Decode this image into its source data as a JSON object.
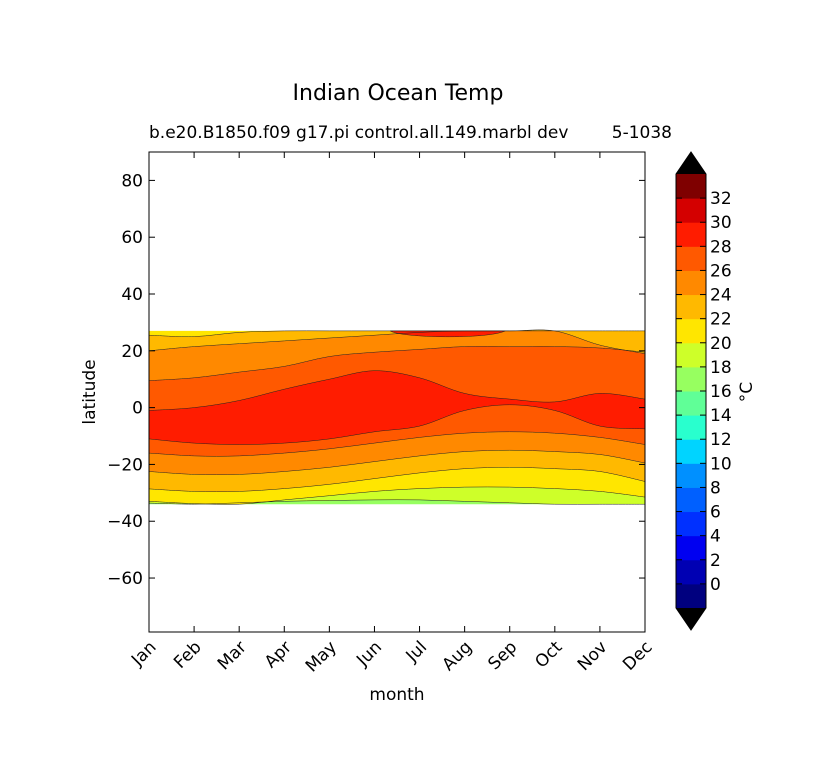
{
  "chart_data": {
    "type": "heatmap",
    "title": "Indian Ocean Temp",
    "subtitle": "b.e20.B1850.f09 g17.pi control.all.149.marbl dev",
    "subtitle_right": "5-1038",
    "xlabel": "month",
    "ylabel": "latitude",
    "x_categories": [
      "Jan",
      "Feb",
      "Mar",
      "Apr",
      "May",
      "Jun",
      "Jul",
      "Aug",
      "Sep",
      "Oct",
      "Nov",
      "Dec"
    ],
    "y_ticks": [
      80,
      60,
      40,
      20,
      0,
      -20,
      -40,
      -60
    ],
    "ylim": [
      -79,
      90
    ],
    "data_lat_range": [
      -34,
      27
    ],
    "colorbar": {
      "label": "°C",
      "ticks": [
        0,
        2,
        4,
        6,
        8,
        10,
        12,
        14,
        16,
        18,
        20,
        22,
        24,
        26,
        28,
        30,
        32
      ],
      "bins": [
        {
          "lo": -2,
          "hi": 0,
          "color": "#00007f"
        },
        {
          "lo": 0,
          "hi": 2,
          "color": "#0000b3"
        },
        {
          "lo": 2,
          "hi": 4,
          "color": "#0000f1"
        },
        {
          "lo": 4,
          "hi": 6,
          "color": "#0030ff"
        },
        {
          "lo": 6,
          "hi": 8,
          "color": "#0060ff"
        },
        {
          "lo": 8,
          "hi": 10,
          "color": "#0090ff"
        },
        {
          "lo": 10,
          "hi": 12,
          "color": "#00d4ff"
        },
        {
          "lo": 12,
          "hi": 14,
          "color": "#29ffce"
        },
        {
          "lo": 14,
          "hi": 16,
          "color": "#60ff97"
        },
        {
          "lo": 16,
          "hi": 18,
          "color": "#97ff60"
        },
        {
          "lo": 18,
          "hi": 20,
          "color": "#ceff29"
        },
        {
          "lo": 20,
          "hi": 22,
          "color": "#ffe600"
        },
        {
          "lo": 22,
          "hi": 24,
          "color": "#ffb900"
        },
        {
          "lo": 24,
          "hi": 26,
          "color": "#ff8900"
        },
        {
          "lo": 26,
          "hi": 28,
          "color": "#ff5900"
        },
        {
          "lo": 28,
          "hi": 30,
          "color": "#ff1c00"
        },
        {
          "lo": 30,
          "hi": 32,
          "color": "#d40000"
        },
        {
          "lo": 32,
          "hi": 34,
          "color": "#7f0000"
        }
      ],
      "extend": "both"
    },
    "contour_lines": [
      {
        "level": 18,
        "lat": [
          -33.6,
          -34,
          -33.5,
          -33,
          -32.7,
          -32.5,
          -32.5,
          -33,
          -33.5,
          -34,
          -34,
          -34
        ]
      },
      {
        "level": 20,
        "lat": [
          -33,
          -33.8,
          -34,
          -32.5,
          -31,
          -29.5,
          -28.5,
          -28,
          -28,
          -28.5,
          -29.5,
          -31.5
        ]
      },
      {
        "level": 22,
        "lat": [
          -28.6,
          -29.5,
          -29.5,
          -28.5,
          -27,
          -25,
          -23,
          -21.5,
          -21,
          -21.5,
          -22.5,
          -26
        ]
      },
      {
        "level": 24,
        "lat": [
          -22.5,
          -23.5,
          -23.5,
          -22.5,
          -21,
          -19,
          -17,
          -15.5,
          -15,
          -15.5,
          -16.5,
          -19.5
        ]
      },
      {
        "level": 26,
        "lat": [
          -16,
          -17,
          -17,
          -16,
          -14.5,
          -12.5,
          -10.5,
          -9,
          -8.5,
          -9,
          -10.5,
          -13
        ]
      },
      {
        "level": 26,
        "lat": [
          9.5,
          10.5,
          12.5,
          14.5,
          18,
          19.5,
          20.5,
          21.5,
          21.5,
          21.5,
          21,
          19.5
        ]
      },
      {
        "level": 24,
        "lat": [
          20,
          21.5,
          22.5,
          23.5,
          24.5,
          25.5,
          26.5,
          27,
          27,
          27,
          22,
          19
        ]
      },
      {
        "level": 22,
        "lat": [
          25.5,
          25,
          26.5,
          27,
          27,
          27,
          27,
          27,
          27,
          27,
          27,
          27
        ]
      }
    ],
    "warm_pool_28": {
      "upper": [
        -1,
        0,
        2.5,
        6.5,
        10,
        13,
        10.5,
        5,
        3,
        2,
        5,
        3
      ],
      "lower": [
        -11,
        -12.5,
        -13,
        -12.5,
        -11,
        -8.5,
        -6.5,
        -1,
        1,
        -1,
        -6.5,
        -7.5
      ]
    }
  }
}
